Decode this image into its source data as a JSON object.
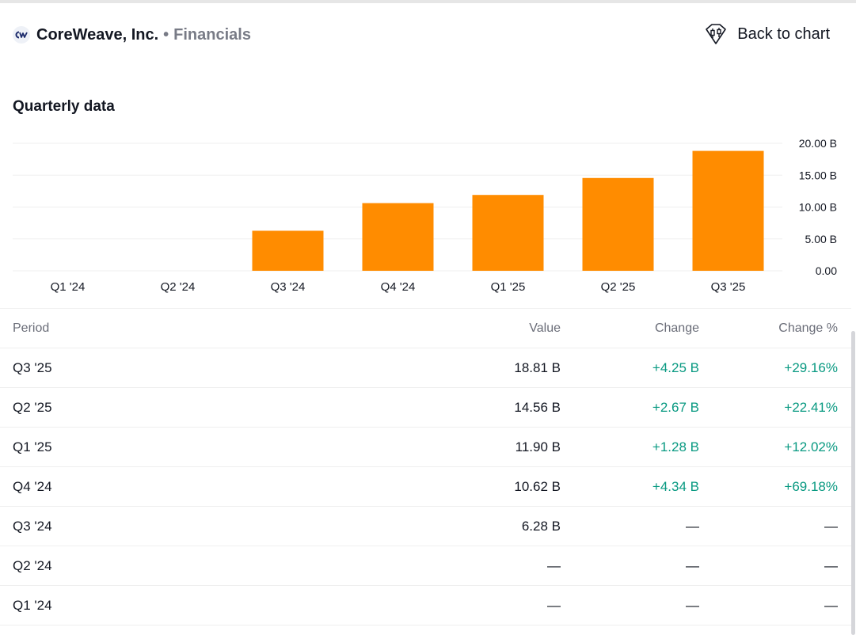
{
  "header": {
    "company": "CoreWeave, Inc.",
    "separator": "•",
    "section": "Financials",
    "logo_icon": "coreweave-logo-icon",
    "back_label": "Back to chart",
    "back_icon": "candlestick-chart-icon"
  },
  "chart": {
    "title": "Quarterly data"
  },
  "chart_data": {
    "type": "bar",
    "categories": [
      "Q1 '24",
      "Q2 '24",
      "Q3 '24",
      "Q4 '24",
      "Q1 '25",
      "Q2 '25",
      "Q3 '25"
    ],
    "values": [
      null,
      null,
      6.28,
      10.62,
      11.9,
      14.56,
      18.81
    ],
    "ylim": [
      0,
      20
    ],
    "yticks": [
      0,
      5,
      10,
      15,
      20
    ],
    "ytick_labels": [
      "0.00",
      "5.00 B",
      "10.00 B",
      "15.00 B",
      "20.00 B"
    ],
    "unit": "B",
    "grid": true,
    "bar_color": "#ff8c00"
  },
  "table": {
    "headers": {
      "period": "Period",
      "value": "Value",
      "change": "Change",
      "change_pct": "Change %"
    },
    "rows": [
      {
        "period": "Q3 '25",
        "value": "18.81 B",
        "change": "+4.25 B",
        "change_pct": "+29.16%"
      },
      {
        "period": "Q2 '25",
        "value": "14.56 B",
        "change": "+2.67 B",
        "change_pct": "+22.41%"
      },
      {
        "period": "Q1 '25",
        "value": "11.90 B",
        "change": "+1.28 B",
        "change_pct": "+12.02%"
      },
      {
        "period": "Q4 '24",
        "value": "10.62 B",
        "change": "+4.34 B",
        "change_pct": "+69.18%"
      },
      {
        "period": "Q3 '24",
        "value": "6.28 B",
        "change": "—",
        "change_pct": "—"
      },
      {
        "period": "Q2 '24",
        "value": "—",
        "change": "—",
        "change_pct": "—"
      },
      {
        "period": "Q1 '24",
        "value": "—",
        "change": "—",
        "change_pct": "—"
      }
    ]
  },
  "colors": {
    "positive": "#089981",
    "bar": "#ff8c00"
  }
}
